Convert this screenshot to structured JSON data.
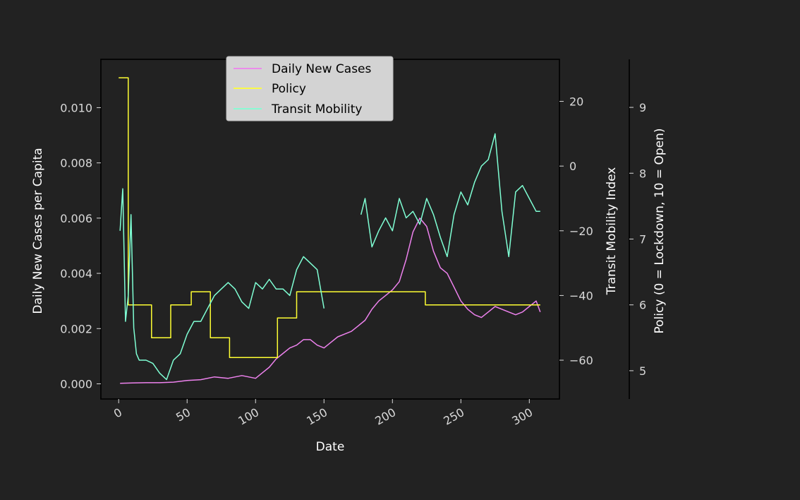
{
  "chart_data": {
    "type": "line",
    "x_tick_labels": [
      "0",
      "50",
      "100",
      "150",
      "200",
      "250",
      "300"
    ],
    "x_ticks": [
      0,
      50,
      100,
      150,
      200,
      250,
      300
    ],
    "xlim": [
      -13,
      322
    ],
    "xlabel": "Date",
    "y_left": {
      "label": "Daily New Cases per Capita",
      "ticks": [
        0.0,
        0.002,
        0.004,
        0.006,
        0.008,
        0.01
      ],
      "tick_labels": [
        "0.000",
        "0.002",
        "0.004",
        "0.006",
        "0.008",
        "0.010"
      ],
      "ylim": [
        -0.00055,
        0.01175
      ]
    },
    "y_right_mobility": {
      "label": "Transit Mobility Index",
      "ticks": [
        -60,
        -40,
        -20,
        0,
        20
      ],
      "tick_labels": [
        "−60",
        "−40",
        "−20",
        "0",
        "20"
      ],
      "ylim": [
        -72,
        33
      ]
    },
    "y_right_policy": {
      "label": "Policy (0 = Lockdown, 10 = Open)",
      "ticks": [
        5,
        6,
        7,
        8,
        9
      ],
      "tick_labels": [
        "5",
        "6",
        "7",
        "8",
        "9"
      ],
      "ylim": [
        4.57,
        9.73
      ]
    },
    "legend": {
      "placement": "upper center",
      "entries": [
        "Daily New Cases",
        "Policy",
        "Transit Mobility"
      ]
    },
    "grid": false,
    "series": [
      {
        "name": "Daily New Cases",
        "axis": "left",
        "color": "#ee82ee",
        "x": [
          1,
          10,
          20,
          30,
          40,
          50,
          60,
          70,
          80,
          90,
          100,
          105,
          110,
          115,
          120,
          125,
          130,
          135,
          140,
          145,
          150,
          155,
          160,
          165,
          170,
          175,
          180,
          185,
          190,
          195,
          200,
          205,
          210,
          215,
          220,
          225,
          230,
          235,
          240,
          245,
          250,
          255,
          260,
          265,
          270,
          275,
          280,
          285,
          290,
          295,
          300,
          305,
          308
        ],
        "y": [
          2e-05,
          3e-05,
          4e-05,
          4e-05,
          6e-05,
          0.00012,
          0.00015,
          0.00025,
          0.0002,
          0.0003,
          0.0002,
          0.0004,
          0.0006,
          0.0009,
          0.0011,
          0.0013,
          0.0014,
          0.0016,
          0.0016,
          0.0014,
          0.0013,
          0.0015,
          0.0017,
          0.0018,
          0.0019,
          0.0021,
          0.0023,
          0.0027,
          0.003,
          0.0032,
          0.0034,
          0.0037,
          0.0045,
          0.0055,
          0.006,
          0.0057,
          0.0048,
          0.0042,
          0.004,
          0.0035,
          0.003,
          0.0027,
          0.0025,
          0.0024,
          0.0026,
          0.0028,
          0.0027,
          0.0026,
          0.0025,
          0.0026,
          0.0028,
          0.003,
          0.0026
        ]
      },
      {
        "name": "Policy",
        "axis": "right2",
        "color": "#ffff33",
        "x": [
          0,
          7,
          7,
          24,
          24,
          38,
          38,
          53,
          53,
          67,
          67,
          81,
          81,
          102,
          102,
          116,
          116,
          130,
          130,
          224,
          224,
          308
        ],
        "y": [
          9.45,
          9.45,
          6.0,
          6.0,
          5.5,
          5.5,
          6.0,
          6.0,
          6.2,
          6.2,
          5.5,
          5.5,
          5.2,
          5.2,
          5.2,
          5.2,
          5.8,
          5.8,
          6.2,
          6.2,
          6.0,
          6.0
        ]
      },
      {
        "name": "Transit Mobility",
        "axis": "right1",
        "color": "#7fffd4",
        "segments": [
          {
            "x": [
              1,
              3,
              5,
              7,
              9,
              11,
              13,
              15,
              20,
              25,
              30,
              35,
              40,
              45,
              50,
              55,
              60,
              65,
              70,
              75,
              80,
              85,
              90,
              95,
              100,
              105,
              110,
              115,
              120,
              125,
              130,
              135,
              140,
              145,
              150
            ],
            "y": [
              -20,
              -7,
              -48,
              -40,
              -15,
              -50,
              -58,
              -60,
              -60,
              -61,
              -64,
              -66,
              -60,
              -58,
              -52,
              -48,
              -48,
              -44,
              -40,
              -38,
              -36,
              -38,
              -42,
              -44,
              -36,
              -38,
              -35,
              -38,
              -38,
              -40,
              -32,
              -28,
              -30,
              -32,
              -44
            ]
          },
          {
            "x": [
              177,
              180,
              185,
              190,
              195,
              200,
              205,
              210,
              215,
              220,
              225,
              230,
              235,
              240,
              245,
              250,
              255,
              260,
              265,
              270,
              275,
              280,
              285,
              290,
              295,
              300,
              305,
              308
            ],
            "y": [
              -15,
              -10,
              -25,
              -20,
              -16,
              -20,
              -10,
              -16,
              -14,
              -18,
              -10,
              -15,
              -22,
              -28,
              -15,
              -8,
              -12,
              -5,
              0,
              2,
              10,
              -14,
              -28,
              -8,
              -6,
              -10,
              -14,
              -14
            ]
          }
        ]
      }
    ]
  }
}
